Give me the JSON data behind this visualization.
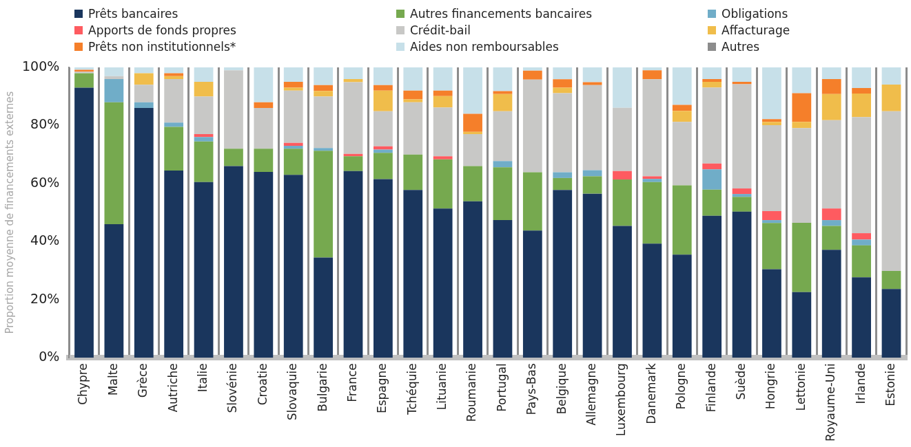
{
  "chart_data": {
    "type": "bar",
    "stacked": true,
    "ylabel": "Proportion moyenne de financements externes",
    "categories": [
      "Chypre",
      "Malte",
      "Grèce",
      "Autriche",
      "Italie",
      "Slovénie",
      "Croatie",
      "Slovaquie",
      "Bulgarie",
      "France",
      "Espagne",
      "Tchéquie",
      "Lituanie",
      "Roumanie",
      "Portugal",
      "Pays-Bas",
      "Belgique",
      "Allemagne",
      "Luxembourg",
      "Danemark",
      "Pologne",
      "Finlande",
      "Suède",
      "Hongrie",
      "Lettonie",
      "Royaume-Uni",
      "Irlande",
      "Estonie"
    ],
    "series": [
      {
        "name": "Prêts bancaires",
        "color": "#1a365d",
        "values": [
          93,
          46,
          86,
          64.5,
          60.5,
          66,
          64,
          63,
          34.5,
          64.3,
          61.5,
          57.8,
          51.4,
          53.9,
          47.4,
          43.8,
          57.8,
          56.5,
          45.4,
          39.3,
          35.5,
          48.9,
          50.3,
          30.5,
          22.6,
          37.2,
          27.7,
          23.7
        ]
      },
      {
        "name": "Autres financements bancaires",
        "color": "#76a94f",
        "values": [
          5,
          42,
          0,
          15,
          14,
          6,
          8,
          9,
          36.8,
          5.1,
          9.1,
          12.2,
          16.9,
          12.1,
          18.2,
          20.1,
          4.1,
          6,
          16,
          21.2,
          23.9,
          9,
          5.1,
          15.9,
          23.9,
          8.2,
          11,
          6.2
        ]
      },
      {
        "name": "Obligations",
        "color": "#70adc8",
        "values": [
          0,
          8,
          2,
          1.5,
          1.5,
          0,
          0,
          1,
          0.9,
          0,
          1.1,
          0,
          0,
          0,
          2.1,
          0,
          2,
          2.1,
          0,
          1.1,
          0,
          7,
          1,
          1,
          0,
          2,
          2,
          0
        ]
      },
      {
        "name": "Apports de fonds propres",
        "color": "#fe5b60",
        "values": [
          0,
          0,
          0,
          0,
          1,
          0,
          0,
          1,
          0,
          0.8,
          1.1,
          0,
          1.1,
          0,
          0,
          0,
          0,
          0,
          2.9,
          0.9,
          0,
          2,
          1.9,
          3.1,
          0,
          4,
          2.2,
          0
        ]
      },
      {
        "name": "Crédit-bail",
        "color": "#c8c8c6",
        "values": [
          0.5,
          1,
          6,
          15,
          13,
          27,
          14,
          18,
          17.8,
          24.7,
          12.1,
          18,
          16.8,
          11,
          17.2,
          31.9,
          27.2,
          29.3,
          21.8,
          33.4,
          21.8,
          26.2,
          35.9,
          29.6,
          32.6,
          30.4,
          40,
          55
        ]
      },
      {
        "name": "Affacturage",
        "color": "#f0bd4b",
        "values": [
          0,
          0,
          4,
          1,
          5,
          0,
          0,
          1,
          1.9,
          1.1,
          7.1,
          1,
          3.9,
          0.8,
          5.9,
          0,
          1.9,
          0,
          0,
          0,
          3.8,
          1.9,
          0,
          1.1,
          2.1,
          9,
          8.1,
          9.2
        ]
      },
      {
        "name": "Prêts non institutionnels*",
        "color": "#f57f2a",
        "values": [
          0.7,
          0,
          0,
          1,
          0,
          0,
          2,
          2,
          2,
          0,
          1.9,
          3,
          1.9,
          6.2,
          1,
          3.1,
          2.9,
          1,
          0,
          3.1,
          2.1,
          1,
          0.8,
          1,
          9.9,
          5.2,
          1.9,
          0
        ]
      },
      {
        "name": "Aides non remboursables",
        "color": "#c7e0e9",
        "values": [
          0.8,
          3,
          2,
          2,
          5,
          1,
          12,
          5,
          6.1,
          4,
          6.1,
          8,
          8,
          16,
          8.2,
          1.1,
          4.1,
          5.1,
          13.9,
          1,
          12.9,
          4,
          5,
          17.8,
          8.9,
          4,
          7.1,
          5.9
        ]
      },
      {
        "name": "Autres",
        "color": "#8c8c8c",
        "values": [
          0,
          0,
          0,
          0,
          0,
          0,
          0,
          0,
          0,
          0,
          0,
          0,
          0,
          0,
          0,
          0,
          0,
          0,
          0,
          0,
          0,
          0,
          0,
          0,
          0,
          0,
          0,
          0
        ]
      }
    ],
    "ylim": [
      0,
      100
    ],
    "yticks": [
      {
        "value": 0,
        "label": "0%"
      },
      {
        "value": 20,
        "label": "20%"
      },
      {
        "value": 40,
        "label": "40%"
      },
      {
        "value": 60,
        "label": "60%"
      },
      {
        "value": 80,
        "label": "80%"
      },
      {
        "value": 100,
        "label": "100%"
      }
    ],
    "grid": "x",
    "legend": "top"
  }
}
